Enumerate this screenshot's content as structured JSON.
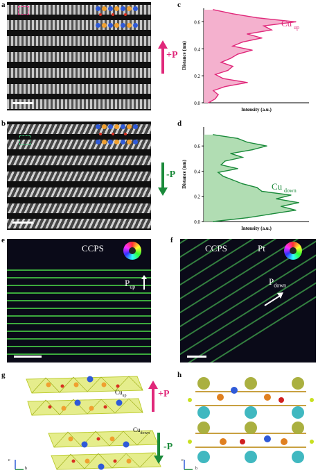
{
  "labels": {
    "a": "a",
    "b": "b",
    "c": "c",
    "d": "d",
    "e": "e",
    "f": "f",
    "g": "g",
    "h": "h"
  },
  "panel_a": {
    "arrow_text": "+P",
    "arrow_color": "#e0287a"
  },
  "panel_b": {
    "arrow_text": "-P",
    "arrow_color": "#1a8a3a"
  },
  "panel_e": {
    "title": "CCPS",
    "polarization_main": "P",
    "polarization_sub": "up"
  },
  "panel_f": {
    "title": "CCPS",
    "metal": "Pt",
    "polarization_main": "P",
    "polarization_sub": "down"
  },
  "panel_g": {
    "up_label_main": "Cu",
    "up_label_sub": "up",
    "down_label_main": "Cu",
    "down_label_sub": "down",
    "plus_text": "+P",
    "minus_text": "-P",
    "axis_c": "c",
    "axis_b": "b"
  },
  "panel_h": {
    "axis_c": "c",
    "axis_b": "b"
  },
  "chart_data": [
    {
      "type": "area",
      "panel": "c",
      "title": "",
      "xlabel": "Intensity (a.u.)",
      "ylabel": "Distance (nm)",
      "ylim": [
        0,
        0.7
      ],
      "yticks": [
        0.0,
        0.2,
        0.4,
        0.6
      ],
      "annotation_main": "Cu",
      "annotation_sub": "up",
      "color": "#e0287a",
      "fill": "#f3a9c9",
      "distance": [
        0.0,
        0.03,
        0.06,
        0.09,
        0.12,
        0.15,
        0.18,
        0.21,
        0.24,
        0.27,
        0.3,
        0.33,
        0.36,
        0.39,
        0.42,
        0.45,
        0.48,
        0.51,
        0.54,
        0.57,
        0.6,
        0.63,
        0.66,
        0.69
      ],
      "intensity": [
        0.05,
        0.12,
        0.15,
        0.1,
        0.22,
        0.45,
        0.2,
        0.12,
        0.25,
        0.3,
        0.18,
        0.28,
        0.35,
        0.5,
        0.3,
        0.4,
        0.6,
        0.45,
        0.7,
        0.62,
        0.95,
        0.55,
        0.3,
        0.1
      ]
    },
    {
      "type": "area",
      "panel": "d",
      "title": "",
      "xlabel": "Intensity (a.u.)",
      "ylabel": "Distance (nm)",
      "ylim": [
        0,
        0.75
      ],
      "yticks": [
        0.0,
        0.2,
        0.4,
        0.6
      ],
      "annotation_main": "Cu",
      "annotation_sub": "down",
      "color": "#1a8a3a",
      "fill": "#a8d9ab",
      "distance": [
        0.0,
        0.03,
        0.06,
        0.09,
        0.12,
        0.15,
        0.18,
        0.21,
        0.24,
        0.27,
        0.3,
        0.33,
        0.36,
        0.39,
        0.42,
        0.45,
        0.48,
        0.51,
        0.54,
        0.57,
        0.6,
        0.63,
        0.66,
        0.69
      ],
      "intensity": [
        0.1,
        0.45,
        0.7,
        0.95,
        0.8,
        0.98,
        0.75,
        0.9,
        0.6,
        0.55,
        0.4,
        0.3,
        0.2,
        0.15,
        0.35,
        0.18,
        0.22,
        0.4,
        0.28,
        0.5,
        0.65,
        0.45,
        0.35,
        0.1
      ]
    }
  ]
}
